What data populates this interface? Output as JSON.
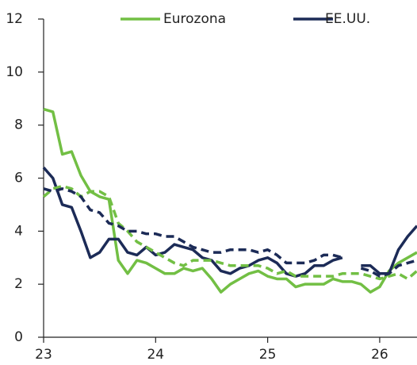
{
  "chart_data": {
    "type": "line",
    "x": [
      23,
      23.083,
      23.167,
      23.25,
      23.333,
      23.417,
      23.5,
      23.583,
      23.667,
      23.75,
      23.833,
      23.917,
      24,
      24.083,
      24.167,
      24.25,
      24.333,
      24.417,
      24.5,
      24.583,
      24.667,
      24.75,
      24.833,
      24.917,
      25,
      25.083,
      25.167,
      25.25,
      25.333,
      25.417,
      25.5,
      25.583,
      25.667,
      25.75,
      25.833,
      25.917,
      26,
      26.083,
      26.167,
      26.25,
      26.333
    ],
    "xlim": [
      23,
      26.333
    ],
    "xticks": [
      23,
      24,
      25,
      26
    ],
    "ylim": [
      0,
      12
    ],
    "yticks": [
      0,
      2,
      4,
      6,
      8,
      10,
      12
    ],
    "legend": "top",
    "series": [
      {
        "name": "Eurozona",
        "color": "#72bf44",
        "dashed": false,
        "values": [
          8.6,
          8.5,
          6.9,
          7.0,
          6.1,
          5.5,
          5.3,
          5.2,
          2.9,
          2.4,
          2.9,
          2.8,
          2.6,
          2.4,
          2.4,
          2.6,
          2.5,
          2.6,
          2.2,
          1.7,
          2.0,
          2.2,
          2.4,
          2.5,
          2.3,
          2.2,
          2.2,
          1.9,
          2.0,
          2.0,
          2.0,
          2.2,
          2.1,
          2.1,
          2.0,
          1.7,
          1.9,
          2.5,
          2.8,
          3.0,
          3.2
        ]
      },
      {
        "name": "EE.UU.",
        "color": "#1c2b57",
        "dashed": false,
        "values": [
          6.4,
          6.0,
          5.0,
          4.9,
          4.0,
          3.0,
          3.2,
          3.7,
          3.7,
          3.2,
          3.1,
          3.4,
          3.1,
          3.2,
          3.5,
          3.4,
          3.3,
          3.0,
          2.9,
          2.5,
          2.4,
          2.6,
          2.7,
          2.9,
          3.0,
          2.8,
          2.4,
          2.3,
          2.4,
          2.7,
          2.7,
          2.9,
          3.0,
          null,
          2.7,
          2.7,
          2.4,
          2.4,
          3.3,
          3.8,
          4.2
        ]
      },
      {
        "color": "#72bf44",
        "dashed": true,
        "values": [
          5.3,
          5.6,
          5.7,
          5.6,
          5.3,
          5.5,
          5.5,
          5.3,
          4.3,
          4.0,
          3.6,
          3.4,
          3.2,
          3.0,
          2.8,
          2.7,
          2.9,
          2.9,
          2.9,
          2.8,
          2.7,
          2.7,
          2.7,
          2.7,
          2.6,
          2.4,
          2.5,
          2.3,
          2.3,
          2.3,
          2.3,
          2.3,
          2.4,
          2.4,
          2.4,
          2.3,
          2.2,
          2.3,
          2.4,
          2.2,
          2.5
        ]
      },
      {
        "color": "#1c2b57",
        "dashed": true,
        "values": [
          5.6,
          5.5,
          5.6,
          5.5,
          5.3,
          4.8,
          4.7,
          4.3,
          4.2,
          4.0,
          4.0,
          3.9,
          3.9,
          3.8,
          3.8,
          3.6,
          3.4,
          3.3,
          3.2,
          3.2,
          3.3,
          3.3,
          3.3,
          3.2,
          3.3,
          3.1,
          2.8,
          2.8,
          2.8,
          2.9,
          3.1,
          3.1,
          3.0,
          null,
          2.6,
          2.5,
          2.3,
          2.4,
          2.7,
          2.8,
          2.9
        ]
      }
    ]
  }
}
